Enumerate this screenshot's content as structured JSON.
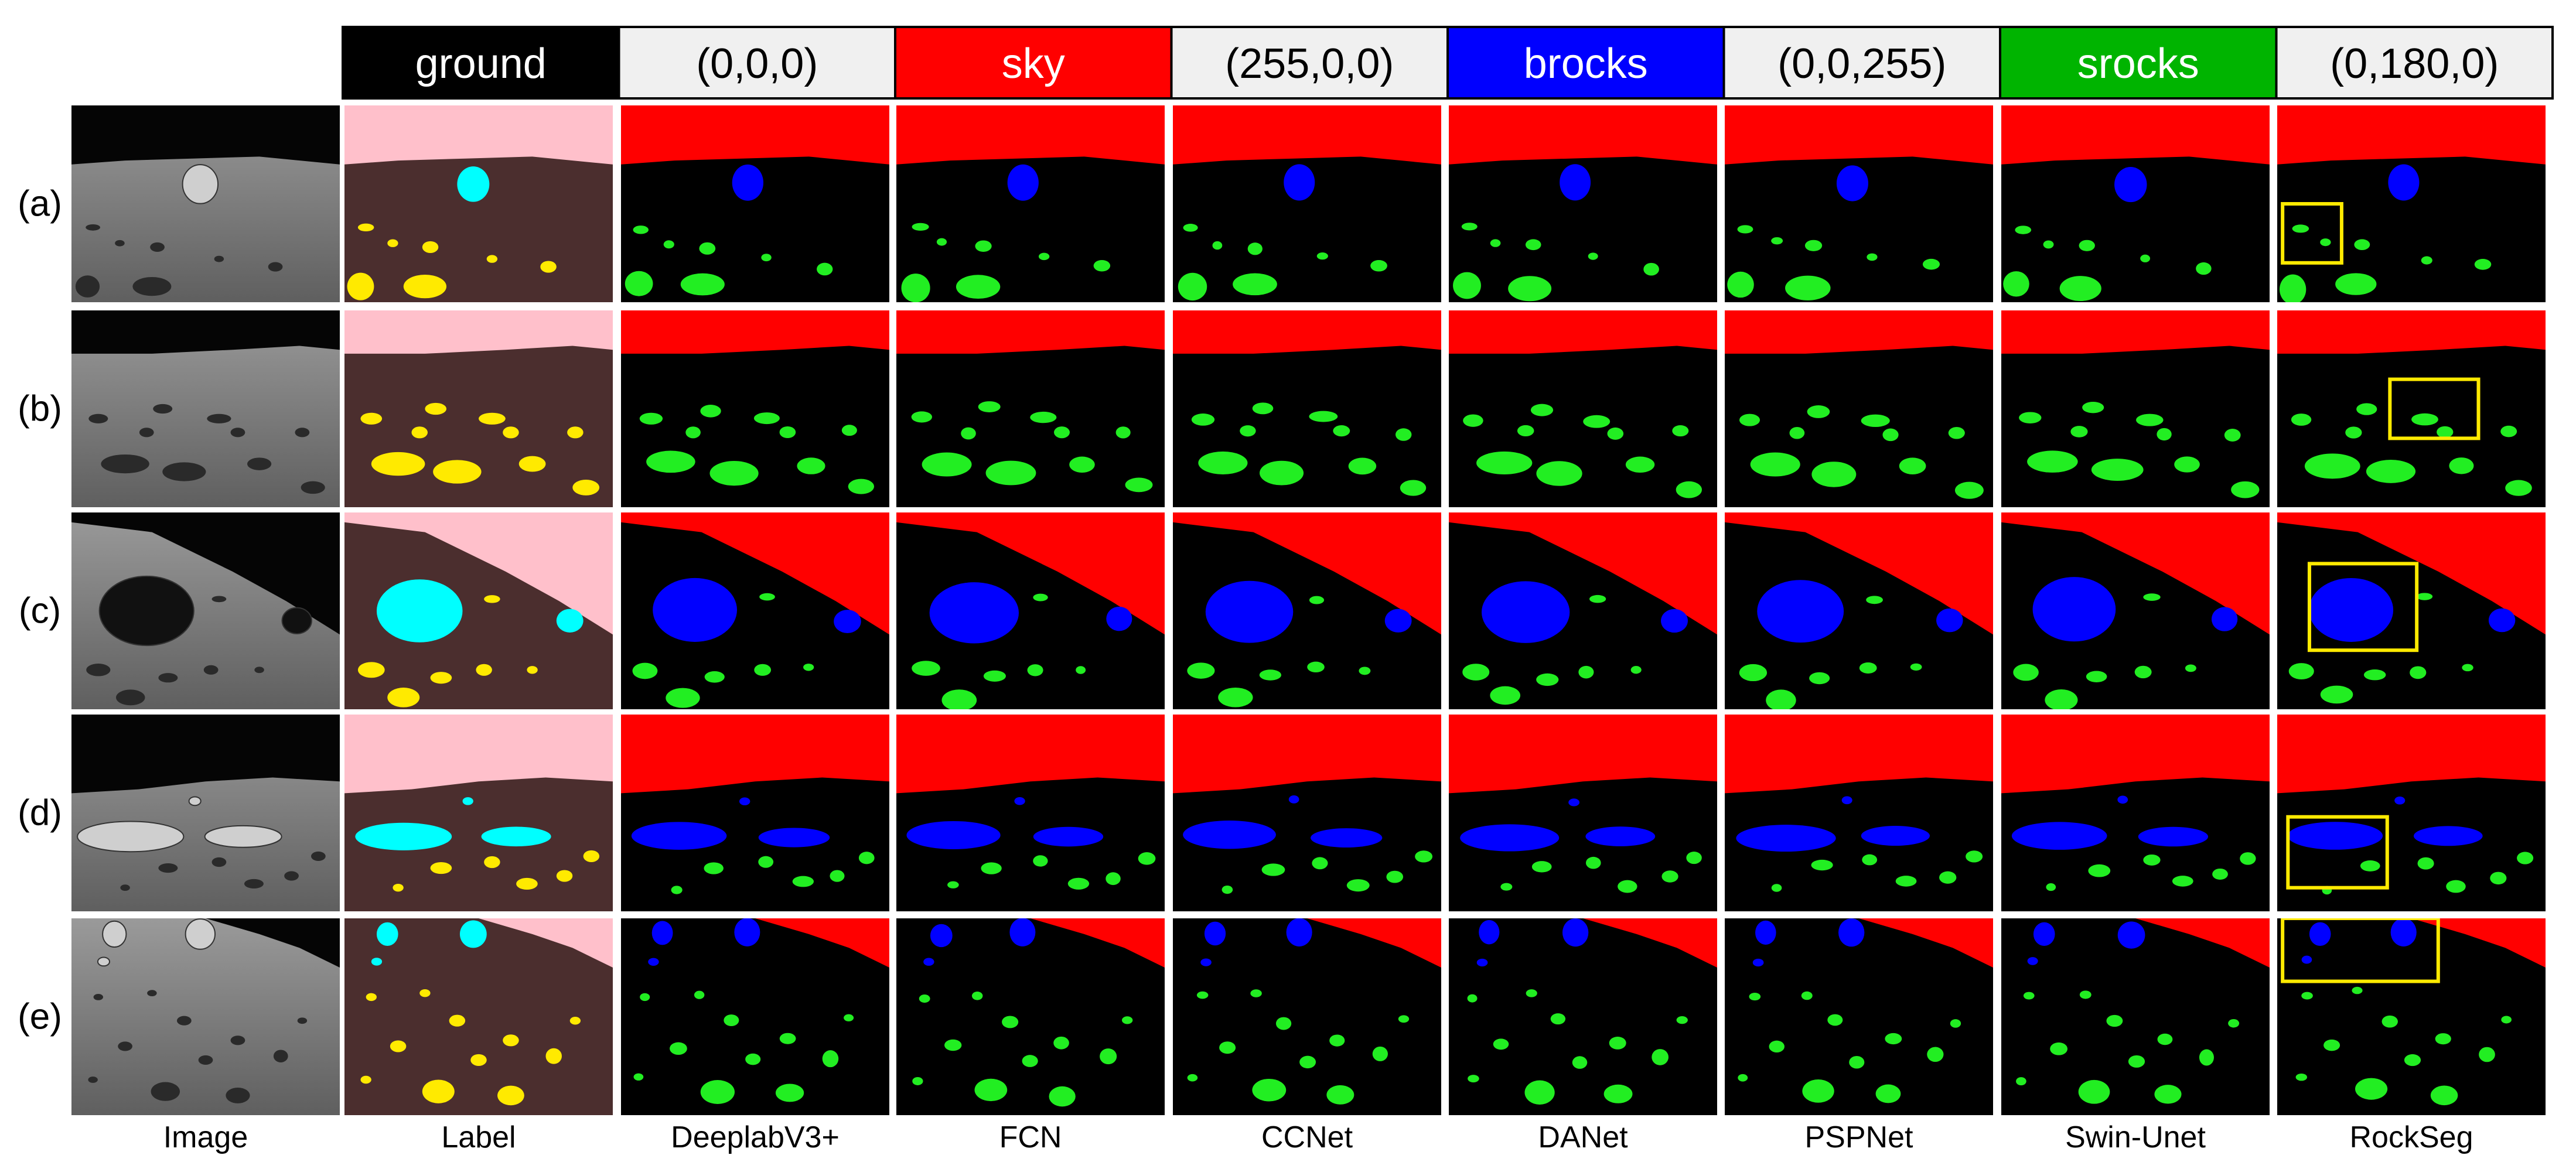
{
  "legend": [
    {
      "name": "ground",
      "rgb": "(0,0,0)",
      "color": "#000000",
      "text_color": "#ffffff"
    },
    {
      "name": "sky",
      "rgb": "(255,0,0)",
      "color": "#ff0000",
      "text_color": "#ffffff"
    },
    {
      "name": "brocks",
      "rgb": "(0,0,255)",
      "color": "#0000ff",
      "text_color": "#ffffff"
    },
    {
      "name": "srocks",
      "rgb": "(0,180,0)",
      "color": "#00b400",
      "text_color": "#ffffff"
    }
  ],
  "rows": [
    "(a)",
    "(b)",
    "(c)",
    "(d)",
    "(e)"
  ],
  "columns": [
    "Image",
    "Label",
    "DeeplabV3+",
    "FCN",
    "CCNet",
    "DANet",
    "PSPNet",
    "Swin-Unet",
    "RockSeg"
  ],
  "colors": {
    "sky_pred": "#ff0000",
    "ground_pred": "#000000",
    "brocks_pred": "#0000ff",
    "srocks_pred": "#22ee22",
    "sky_label": "#ffc0cb",
    "ground_label": "#4b2e2e",
    "brocks_label": "#00ffff",
    "srocks_label": "#ffea00",
    "highlight_box": "#ffea00",
    "header_neutral_bg": "#f0f0f0"
  }
}
